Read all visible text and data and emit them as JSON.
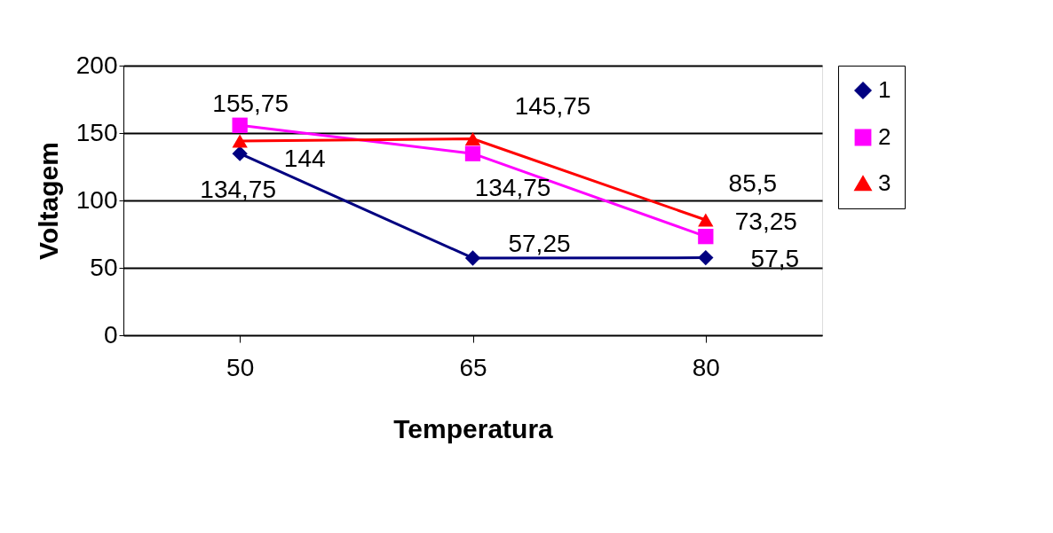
{
  "chart_data": {
    "type": "line",
    "xlabel": "Temperatura",
    "ylabel": "Voltagem",
    "categories": [
      "50",
      "65",
      "80"
    ],
    "series": [
      {
        "name": "1",
        "color": "#000080",
        "marker": "diamond",
        "values": [
          134.75,
          57.25,
          57.5
        ],
        "value_labels": [
          "134,75",
          "57,25",
          "57,5"
        ]
      },
      {
        "name": "2",
        "color": "#ff00ff",
        "marker": "square",
        "values": [
          155.75,
          134.75,
          73.25
        ],
        "value_labels": [
          "155,75",
          "134,75",
          "73,25"
        ]
      },
      {
        "name": "3",
        "color": "#ff0000",
        "marker": "triangle",
        "values": [
          144,
          145.75,
          85.5
        ],
        "value_labels": [
          "144",
          "145,75",
          "85,5"
        ]
      }
    ],
    "ylim": [
      0,
      200
    ],
    "yticks": [
      0,
      50,
      100,
      150,
      200
    ],
    "grid": "y",
    "legend": "right"
  }
}
